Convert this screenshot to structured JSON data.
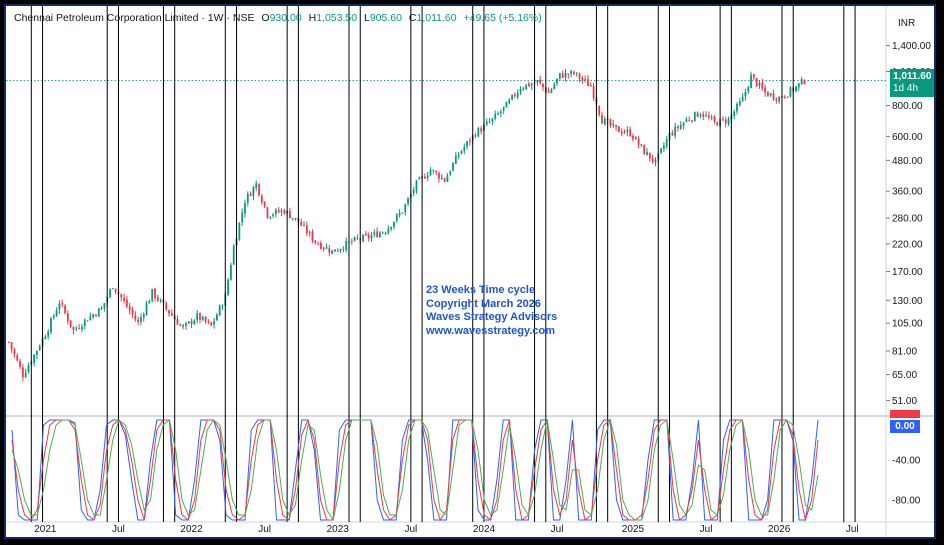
{
  "legend": {
    "name": "Chennai Petroleum Corporation Limited",
    "interval": "1W",
    "exchange": "NSE",
    "open_label": "O",
    "open": "930.00",
    "high_label": "H",
    "high": "1,053.50",
    "low_label": "L",
    "low": "905.60",
    "close_label": "C",
    "close": "1,011.60",
    "change": "+49.65 (+5.16%)"
  },
  "currency": "INR",
  "price_tag": {
    "value": "1,011.60",
    "countdown": "1d 4h"
  },
  "annotation": [
    "23 Weeks Time cycle",
    "Copyright March 2026",
    "Waves Strategy Advisors",
    "www.wavesstrategy.com"
  ],
  "oscillator_tag": "0.00",
  "colors": {
    "up": "#089981",
    "down": "#f23645",
    "osc_blue": "#2962ff",
    "osc_red": "#f23645",
    "osc_green": "#4caf50",
    "cycle_line": "#000000",
    "annotation": "#1a56db"
  },
  "chart_data": [
    {
      "type": "candlestick",
      "scale": "log",
      "yticks": [
        51,
        65,
        81,
        105,
        130,
        170,
        220,
        280,
        360,
        480,
        600,
        800,
        1100,
        1400
      ],
      "ytick_labels": [
        "51.00",
        "65.00",
        "81.00",
        "105.00",
        "130.00",
        "170.00",
        "220.00",
        "280.00",
        "360.00",
        "480.00",
        "600.00",
        "800.00",
        "1,100.00",
        "1,400.00"
      ],
      "ylim": [
        45,
        1650
      ],
      "xlim": [
        "2020-09-28",
        "2026-09-28"
      ],
      "xticks": [
        {
          "date": "2021-01-04",
          "label": "2021"
        },
        {
          "date": "2021-07-05",
          "label": "Jul"
        },
        {
          "date": "2022-01-03",
          "label": "2022"
        },
        {
          "date": "2022-07-04",
          "label": "Jul"
        },
        {
          "date": "2023-01-02",
          "label": "2023"
        },
        {
          "date": "2023-07-03",
          "label": "Jul"
        },
        {
          "date": "2024-01-01",
          "label": "2024"
        },
        {
          "date": "2024-07-01",
          "label": "Jul"
        },
        {
          "date": "2025-01-06",
          "label": "2025"
        },
        {
          "date": "2025-07-07",
          "label": "Jul"
        },
        {
          "date": "2026-01-05",
          "label": "2026"
        },
        {
          "date": "2026-07-06",
          "label": "Jul"
        }
      ],
      "last_close": 1011.6,
      "price_path": [
        {
          "date": "2020-10-05",
          "value": 88
        },
        {
          "date": "2020-11-09",
          "value": 65
        },
        {
          "date": "2020-12-07",
          "value": 78
        },
        {
          "date": "2021-01-11",
          "value": 100
        },
        {
          "date": "2021-02-08",
          "value": 128
        },
        {
          "date": "2021-03-15",
          "value": 98
        },
        {
          "date": "2021-04-19",
          "value": 110
        },
        {
          "date": "2021-05-24",
          "value": 120
        },
        {
          "date": "2021-06-21",
          "value": 150
        },
        {
          "date": "2021-07-19",
          "value": 128
        },
        {
          "date": "2021-08-23",
          "value": 105
        },
        {
          "date": "2021-09-27",
          "value": 140
        },
        {
          "date": "2021-11-01",
          "value": 120
        },
        {
          "date": "2021-12-13",
          "value": 100
        },
        {
          "date": "2022-01-17",
          "value": 112
        },
        {
          "date": "2022-02-21",
          "value": 102
        },
        {
          "date": "2022-03-28",
          "value": 135
        },
        {
          "date": "2022-04-18",
          "value": 215
        },
        {
          "date": "2022-05-16",
          "value": 330
        },
        {
          "date": "2022-06-13",
          "value": 385
        },
        {
          "date": "2022-07-11",
          "value": 290
        },
        {
          "date": "2022-08-22",
          "value": 300
        },
        {
          "date": "2022-09-26",
          "value": 270
        },
        {
          "date": "2022-11-07",
          "value": 225
        },
        {
          "date": "2022-12-19",
          "value": 205
        },
        {
          "date": "2023-02-06",
          "value": 225
        },
        {
          "date": "2023-03-20",
          "value": 235
        },
        {
          "date": "2023-05-01",
          "value": 250
        },
        {
          "date": "2023-06-12",
          "value": 300
        },
        {
          "date": "2023-07-17",
          "value": 385
        },
        {
          "date": "2023-08-21",
          "value": 440
        },
        {
          "date": "2023-09-25",
          "value": 400
        },
        {
          "date": "2023-10-30",
          "value": 510
        },
        {
          "date": "2023-12-11",
          "value": 620
        },
        {
          "date": "2024-01-22",
          "value": 700
        },
        {
          "date": "2024-02-26",
          "value": 800
        },
        {
          "date": "2024-04-01",
          "value": 950
        },
        {
          "date": "2024-05-13",
          "value": 1000
        },
        {
          "date": "2024-06-10",
          "value": 900
        },
        {
          "date": "2024-07-08",
          "value": 1060
        },
        {
          "date": "2024-08-12",
          "value": 1080
        },
        {
          "date": "2024-09-23",
          "value": 960
        },
        {
          "date": "2024-10-21",
          "value": 700
        },
        {
          "date": "2024-11-25",
          "value": 640
        },
        {
          "date": "2024-12-30",
          "value": 620
        },
        {
          "date": "2025-02-03",
          "value": 520
        },
        {
          "date": "2025-03-03",
          "value": 470
        },
        {
          "date": "2025-04-07",
          "value": 610
        },
        {
          "date": "2025-05-19",
          "value": 700
        },
        {
          "date": "2025-06-23",
          "value": 750
        },
        {
          "date": "2025-07-28",
          "value": 680
        },
        {
          "date": "2025-09-01",
          "value": 700
        },
        {
          "date": "2025-10-06",
          "value": 850
        },
        {
          "date": "2025-10-27",
          "value": 1050
        },
        {
          "date": "2025-12-01",
          "value": 900
        },
        {
          "date": "2026-01-05",
          "value": 860
        },
        {
          "date": "2026-02-09",
          "value": 930
        },
        {
          "date": "2026-03-09",
          "value": 1011.6
        }
      ]
    },
    {
      "type": "line",
      "yticks": [
        0,
        -40,
        -80
      ],
      "ytick_labels": [
        "0.00",
        "-40.00",
        "-80.00"
      ],
      "ylim": [
        -100,
        0
      ],
      "series": [
        {
          "color": "#2962ff",
          "values": [
            -10,
            -95,
            -100,
            -100,
            -100,
            -5,
            0,
            0,
            0,
            0,
            -3,
            -90,
            -100,
            -100,
            -70,
            -5,
            0,
            0,
            -15,
            -60,
            -100,
            -100,
            -40,
            0,
            0,
            0,
            -95,
            -100,
            -100,
            -60,
            0,
            0,
            0,
            -20,
            -95,
            -100,
            -100,
            -100,
            -10,
            0,
            0,
            0,
            -100,
            -100,
            -100,
            -50,
            0,
            0,
            -30,
            -100,
            -100,
            -100,
            -10,
            0,
            0,
            0,
            0,
            0,
            -80,
            -100,
            -100,
            -100,
            -20,
            0,
            0,
            0,
            -40,
            -100,
            -100,
            -100,
            0,
            0,
            0,
            0,
            -90,
            -100,
            -100,
            -60,
            0,
            0,
            -100,
            -100,
            -100,
            -30,
            0,
            0,
            -100,
            -100,
            -60,
            0,
            -100,
            -100,
            -100,
            -10,
            0,
            0,
            -80,
            -100,
            -100,
            -100,
            -100,
            -40,
            0,
            0,
            0,
            -100,
            -100,
            -100,
            -60,
            0,
            -100,
            -100,
            -100,
            -20,
            0,
            0,
            0,
            -100,
            -100,
            -100,
            -80,
            0,
            0,
            0,
            -20,
            -100,
            -100,
            -60,
            0
          ]
        },
        {
          "color": "#f23645",
          "values": [
            -20,
            -70,
            -95,
            -100,
            -90,
            -40,
            -5,
            0,
            0,
            0,
            -10,
            -60,
            -95,
            -100,
            -85,
            -30,
            -5,
            0,
            -10,
            -40,
            -80,
            -100,
            -60,
            -10,
            0,
            0,
            -60,
            -95,
            -100,
            -80,
            -20,
            0,
            0,
            -10,
            -70,
            -95,
            -100,
            -95,
            -40,
            -5,
            0,
            0,
            -60,
            -95,
            -100,
            -70,
            -15,
            0,
            -20,
            -80,
            -100,
            -100,
            -40,
            -5,
            0,
            0,
            0,
            0,
            -50,
            -90,
            -100,
            -95,
            -40,
            -5,
            0,
            0,
            -20,
            -80,
            -100,
            -90,
            -20,
            0,
            0,
            0,
            -60,
            -95,
            -100,
            -80,
            -20,
            0,
            -70,
            -100,
            -95,
            -50,
            -10,
            0,
            -70,
            -95,
            -80,
            -20,
            -70,
            -100,
            -95,
            -40,
            -5,
            0,
            -50,
            -95,
            -100,
            -100,
            -95,
            -60,
            -10,
            0,
            0,
            -70,
            -100,
            -95,
            -70,
            -20,
            -70,
            -100,
            -95,
            -50,
            -10,
            0,
            0,
            -60,
            -95,
            -100,
            -90,
            -30,
            0,
            0,
            -15,
            -70,
            -100,
            -80,
            -20
          ]
        },
        {
          "color": "#4caf50",
          "values": [
            -30,
            -50,
            -80,
            -95,
            -95,
            -70,
            -30,
            -5,
            0,
            0,
            -5,
            -40,
            -80,
            -95,
            -95,
            -60,
            -20,
            0,
            -5,
            -25,
            -60,
            -90,
            -80,
            -30,
            -5,
            0,
            -30,
            -80,
            -95,
            -90,
            -50,
            -10,
            0,
            -5,
            -40,
            -80,
            -95,
            -95,
            -70,
            -20,
            0,
            0,
            -30,
            -80,
            -95,
            -85,
            -40,
            -5,
            -10,
            -55,
            -90,
            -100,
            -70,
            -20,
            0,
            0,
            0,
            0,
            -25,
            -75,
            -95,
            -95,
            -70,
            -20,
            0,
            0,
            -10,
            -50,
            -90,
            -95,
            -50,
            -5,
            0,
            0,
            -30,
            -80,
            -95,
            -90,
            -50,
            -5,
            -40,
            -85,
            -95,
            -75,
            -30,
            0,
            -40,
            -85,
            -90,
            -50,
            -50,
            -90,
            -95,
            -70,
            -20,
            0,
            -25,
            -80,
            -95,
            -100,
            -100,
            -80,
            -30,
            -5,
            0,
            -40,
            -85,
            -95,
            -85,
            -45,
            -50,
            -90,
            -95,
            -75,
            -30,
            -5,
            0,
            -30,
            -80,
            -95,
            -95,
            -60,
            -10,
            0,
            -5,
            -40,
            -85,
            -90,
            -55
          ]
        }
      ]
    }
  ],
  "cycle_lines": [
    "2020-11-30",
    "2020-12-28",
    "2021-06-07",
    "2021-07-05",
    "2021-10-25",
    "2021-11-22",
    "2022-03-28",
    "2022-04-25",
    "2022-08-29",
    "2022-09-26",
    "2023-01-30",
    "2023-02-27",
    "2023-07-03",
    "2023-07-31",
    "2023-12-04",
    "2024-01-01",
    "2024-05-06",
    "2024-06-03",
    "2024-10-07",
    "2024-11-04",
    "2025-03-10",
    "2025-04-07",
    "2025-08-11",
    "2025-09-08",
    "2026-01-12",
    "2026-02-09",
    "2026-06-15",
    "2026-07-13"
  ]
}
